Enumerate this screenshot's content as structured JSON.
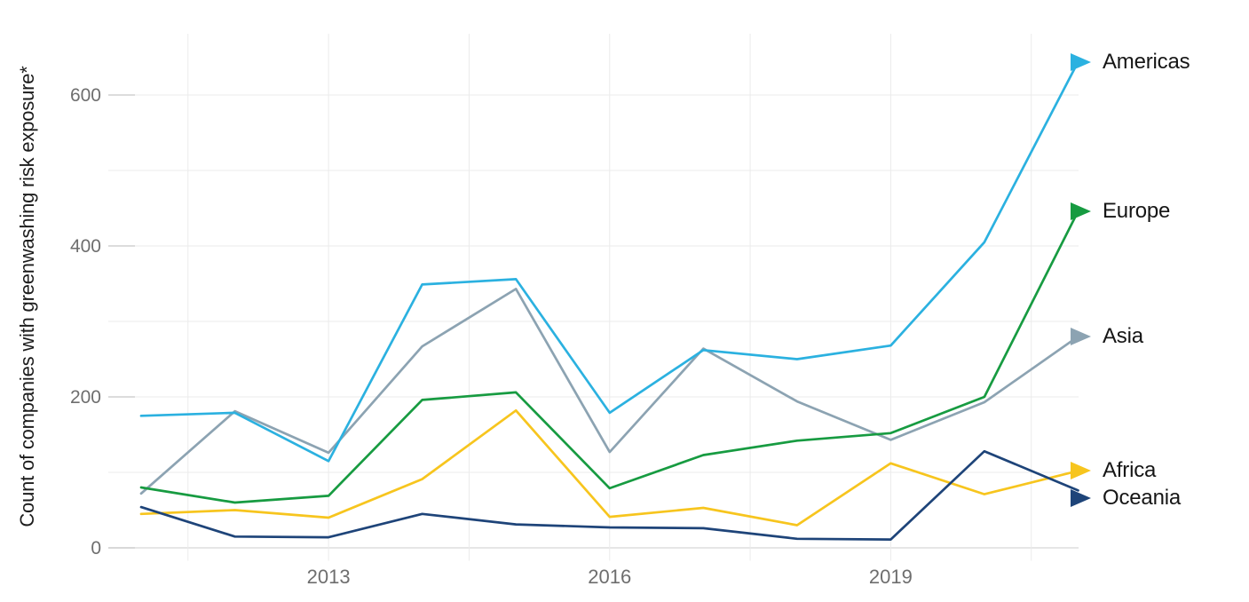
{
  "chart_data": {
    "type": "line",
    "title": "",
    "xlabel": "",
    "ylabel": "Count of companies with greenwashing risk exposure*",
    "x": [
      2011,
      2012,
      2013,
      2014,
      2015,
      2016,
      2017,
      2018,
      2019,
      2020,
      2021
    ],
    "series": [
      {
        "name": "Americas",
        "color": "#2bb1e0",
        "values": [
          175,
          179,
          115,
          349,
          356,
          179,
          262,
          250,
          268,
          405,
          644
        ]
      },
      {
        "name": "Europe",
        "color": "#179b41",
        "values": [
          80,
          60,
          69,
          196,
          206,
          79,
          123,
          142,
          152,
          200,
          446
        ]
      },
      {
        "name": "Asia",
        "color": "#8ca3b2",
        "values": [
          72,
          181,
          126,
          267,
          343,
          127,
          264,
          194,
          143,
          193,
          280
        ]
      },
      {
        "name": "Africa",
        "color": "#f7c51e",
        "values": [
          45,
          50,
          40,
          91,
          182,
          41,
          53,
          30,
          112,
          71,
          102
        ]
      },
      {
        "name": "Oceania",
        "color": "#1e4479",
        "values": [
          54,
          15,
          14,
          45,
          31,
          27,
          26,
          12,
          11,
          128,
          76
        ]
      }
    ],
    "xlim": [
      2011,
      2021
    ],
    "ylim": [
      0,
      650
    ],
    "x_tick_labels": [
      "2013",
      "2016",
      "2019"
    ],
    "x_ticks": [
      2013,
      2016,
      2019
    ],
    "x_gridlines": [
      2011.5,
      2013,
      2014.5,
      2016,
      2017.5,
      2019,
      2020.5
    ],
    "y_tick_labels": [
      "0",
      "200",
      "400",
      "600"
    ],
    "y_ticks": [
      0,
      200,
      400,
      600
    ],
    "y_gridlines": [
      0,
      100,
      200,
      300,
      400,
      500,
      600
    ],
    "grid": true,
    "legend_position": "right",
    "legend_marker": "triangle-right",
    "colors": {
      "gridline": "#ebebeb",
      "baseline": "#d6d6d6",
      "tick_leader": "#c6c6c6",
      "tick_label": "#6e6e6e",
      "text": "#161616"
    }
  }
}
